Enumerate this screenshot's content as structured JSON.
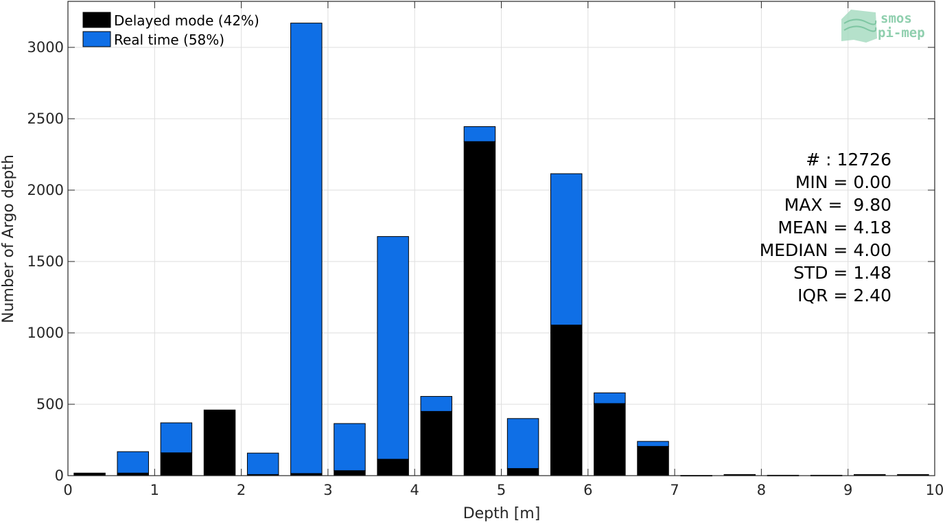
{
  "chart_data": {
    "type": "bar",
    "stacked": true,
    "xlabel": "Depth [m]",
    "ylabel": "Number of Argo depth",
    "xlim": [
      0,
      10
    ],
    "ylim": [
      0,
      3200
    ],
    "xticks": [
      "0",
      "1",
      "2",
      "3",
      "4",
      "5",
      "6",
      "7",
      "8",
      "9",
      "10"
    ],
    "yticks": [
      "0",
      "500",
      "1000",
      "1500",
      "2000",
      "2500",
      "3000"
    ],
    "grid": true,
    "legend_position": "top-left",
    "bin_width": 0.5,
    "x": [
      0.25,
      0.75,
      1.25,
      1.75,
      2.25,
      2.75,
      3.25,
      3.75,
      4.25,
      4.75,
      5.25,
      5.75,
      6.25,
      6.75,
      7.25,
      7.75,
      8.25,
      8.75,
      9.25,
      9.75
    ],
    "series": [
      {
        "name": "Delayed mode (42%)",
        "color": "#000000",
        "values": [
          18,
          18,
          160,
          460,
          8,
          15,
          35,
          115,
          450,
          2340,
          50,
          1055,
          505,
          205,
          2,
          8,
          3,
          3,
          8,
          8
        ]
      },
      {
        "name": "Real time (58%)",
        "color": "#0f6fe6",
        "values": [
          0,
          150,
          210,
          0,
          150,
          3155,
          330,
          1560,
          105,
          105,
          350,
          1060,
          75,
          35,
          0,
          0,
          0,
          0,
          0,
          0
        ]
      }
    ],
    "stats": {
      "count": "# : 12726",
      "min": "MIN = 0.00",
      "max": "MAX =  9.80",
      "mean": "MEAN = 4.18",
      "median": "MEDIAN = 4.00",
      "std": "STD = 1.48",
      "iqr": "IQR = 2.40"
    }
  },
  "logo": {
    "line1": "smos",
    "line2": "pi-mep"
  }
}
